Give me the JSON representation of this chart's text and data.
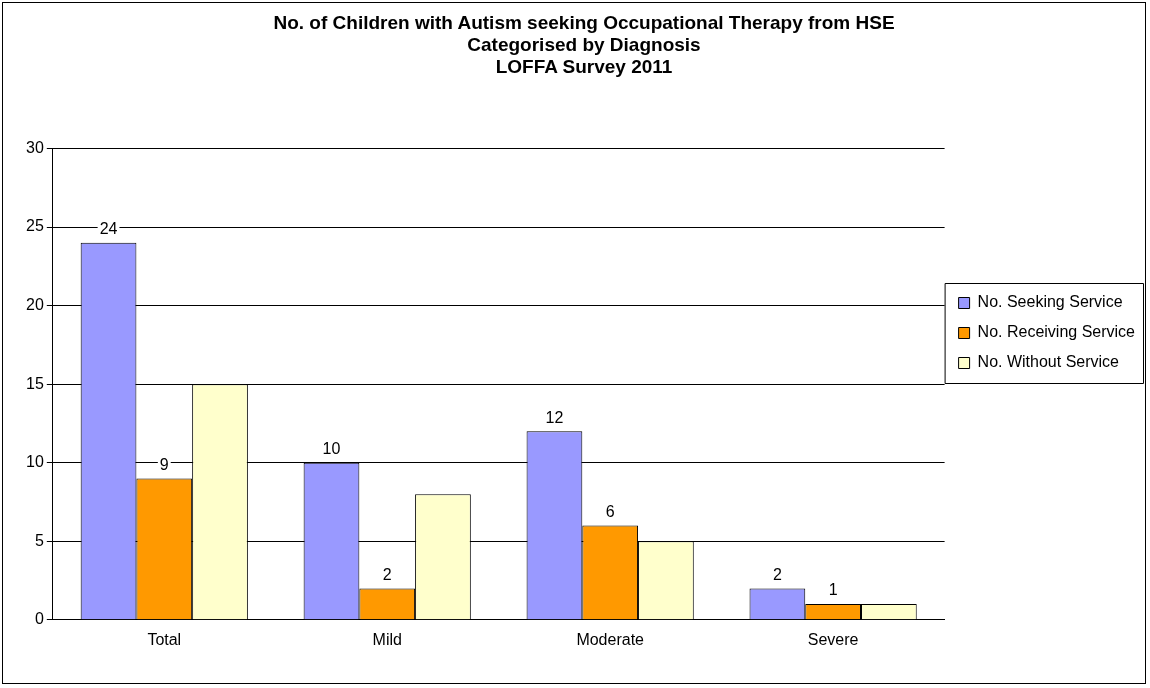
{
  "chart_data": {
    "type": "bar",
    "title": "No. of Children with Autism seeking Occupational Therapy from HSE\nCategorised by Diagnosis\nLOFFA Survey 2011",
    "categories": [
      "Total",
      "Mild",
      "Moderate",
      "Severe"
    ],
    "series": [
      {
        "name": "No. Seeking Service",
        "color": "#9999ff",
        "values": [
          24,
          10,
          12,
          2
        ],
        "value_labels": [
          "24",
          "10",
          "12",
          "2"
        ]
      },
      {
        "name": "No. Receiving Service",
        "color": "#ff9900",
        "values": [
          9,
          2,
          6,
          1
        ],
        "value_labels": [
          "9",
          "2",
          "6",
          "1"
        ]
      },
      {
        "name": "No. Without Service",
        "color": "#ffffcc",
        "values": [
          15,
          8,
          5,
          1
        ]
      }
    ],
    "ylim": [
      0,
      30
    ],
    "yticks": [
      0,
      5,
      10,
      15,
      20,
      25,
      30
    ],
    "grid": "y",
    "legend": "right"
  }
}
